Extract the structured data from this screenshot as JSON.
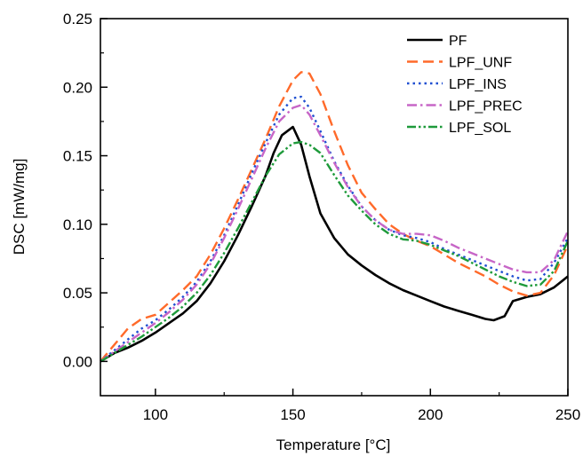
{
  "chart_data": {
    "type": "line",
    "xlabel": "Temperature [°C]",
    "ylabel": "DSC [mW/mg]",
    "xlim": [
      80,
      250
    ],
    "ylim": [
      -0.025,
      0.25
    ],
    "xticks": [
      100,
      150,
      200,
      250
    ],
    "xtick_labels": [
      "100",
      "150",
      "200",
      "250"
    ],
    "yticks": [
      0.0,
      0.05,
      0.1,
      0.15,
      0.2,
      0.25
    ],
    "ytick_labels": [
      "0.00",
      "0.05",
      "0.10",
      "0.15",
      "0.20",
      "0.25"
    ],
    "grid": false,
    "legend_position": "top-right",
    "series": [
      {
        "name": "PF",
        "color": "#000000",
        "style": "solid",
        "x": [
          80,
          85,
          90,
          95,
          100,
          105,
          110,
          115,
          120,
          125,
          130,
          135,
          140,
          143,
          146,
          150,
          153,
          156,
          160,
          165,
          170,
          175,
          180,
          185,
          190,
          195,
          200,
          205,
          210,
          215,
          220,
          223,
          227,
          230,
          235,
          240,
          245,
          250
        ],
        "y": [
          0.0,
          0.006,
          0.01,
          0.015,
          0.021,
          0.028,
          0.035,
          0.044,
          0.057,
          0.073,
          0.092,
          0.113,
          0.135,
          0.152,
          0.165,
          0.171,
          0.158,
          0.135,
          0.108,
          0.09,
          0.078,
          0.07,
          0.063,
          0.057,
          0.052,
          0.048,
          0.044,
          0.04,
          0.037,
          0.034,
          0.031,
          0.03,
          0.033,
          0.044,
          0.047,
          0.049,
          0.054,
          0.062
        ]
      },
      {
        "name": "LPF_UNF",
        "color": "#ff6a2a",
        "style": "dash",
        "x": [
          80,
          85,
          90,
          95,
          100,
          105,
          110,
          115,
          120,
          125,
          130,
          135,
          140,
          145,
          150,
          153,
          156,
          160,
          165,
          170,
          175,
          180,
          185,
          190,
          195,
          200,
          205,
          210,
          215,
          220,
          225,
          230,
          235,
          240,
          245,
          250
        ],
        "y": [
          0.0,
          0.012,
          0.024,
          0.031,
          0.034,
          0.043,
          0.052,
          0.062,
          0.078,
          0.097,
          0.118,
          0.14,
          0.162,
          0.186,
          0.205,
          0.211,
          0.21,
          0.195,
          0.168,
          0.143,
          0.123,
          0.111,
          0.1,
          0.093,
          0.088,
          0.084,
          0.078,
          0.072,
          0.067,
          0.062,
          0.056,
          0.051,
          0.048,
          0.05,
          0.063,
          0.085
        ]
      },
      {
        "name": "LPF_INS",
        "color": "#1f4fd1",
        "style": "dot",
        "x": [
          80,
          85,
          90,
          95,
          100,
          105,
          110,
          115,
          120,
          125,
          130,
          135,
          140,
          145,
          150,
          153,
          156,
          160,
          165,
          170,
          175,
          180,
          185,
          190,
          195,
          200,
          205,
          210,
          215,
          220,
          225,
          230,
          235,
          240,
          245,
          250
        ],
        "y": [
          0.0,
          0.008,
          0.016,
          0.024,
          0.03,
          0.038,
          0.047,
          0.058,
          0.073,
          0.092,
          0.114,
          0.137,
          0.159,
          0.18,
          0.192,
          0.193,
          0.185,
          0.168,
          0.146,
          0.128,
          0.113,
          0.103,
          0.096,
          0.092,
          0.09,
          0.087,
          0.082,
          0.078,
          0.074,
          0.07,
          0.066,
          0.062,
          0.059,
          0.06,
          0.072,
          0.09
        ]
      },
      {
        "name": "LPF_PREC",
        "color": "#c766c7",
        "style": "dashdot",
        "x": [
          80,
          85,
          90,
          95,
          100,
          105,
          110,
          115,
          120,
          125,
          130,
          135,
          140,
          145,
          150,
          153,
          156,
          160,
          165,
          170,
          175,
          180,
          185,
          190,
          195,
          200,
          205,
          210,
          215,
          220,
          225,
          230,
          235,
          240,
          245,
          250
        ],
        "y": [
          0.0,
          0.007,
          0.014,
          0.021,
          0.028,
          0.036,
          0.045,
          0.056,
          0.071,
          0.09,
          0.111,
          0.133,
          0.155,
          0.175,
          0.185,
          0.187,
          0.18,
          0.165,
          0.145,
          0.127,
          0.113,
          0.103,
          0.096,
          0.093,
          0.093,
          0.092,
          0.088,
          0.083,
          0.079,
          0.075,
          0.071,
          0.067,
          0.065,
          0.065,
          0.074,
          0.095
        ]
      },
      {
        "name": "LPF_SOL",
        "color": "#1e9a3a",
        "style": "dashdotdot",
        "x": [
          80,
          85,
          90,
          95,
          100,
          105,
          110,
          115,
          120,
          125,
          130,
          135,
          140,
          145,
          150,
          153,
          156,
          160,
          165,
          170,
          175,
          180,
          185,
          190,
          195,
          200,
          205,
          210,
          215,
          220,
          225,
          230,
          235,
          240,
          245,
          250
        ],
        "y": [
          0.0,
          0.006,
          0.012,
          0.018,
          0.025,
          0.032,
          0.04,
          0.05,
          0.063,
          0.079,
          0.097,
          0.116,
          0.135,
          0.151,
          0.159,
          0.16,
          0.158,
          0.152,
          0.136,
          0.121,
          0.11,
          0.1,
          0.093,
          0.089,
          0.088,
          0.085,
          0.081,
          0.077,
          0.072,
          0.067,
          0.062,
          0.058,
          0.055,
          0.056,
          0.066,
          0.088
        ]
      }
    ]
  }
}
